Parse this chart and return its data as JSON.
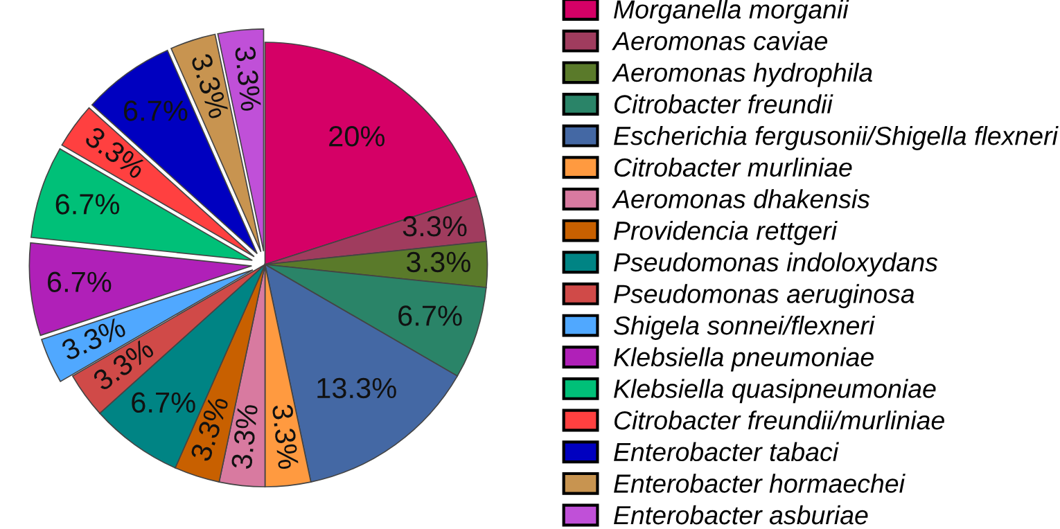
{
  "chart_data": {
    "type": "pie",
    "categories": [
      "Morganella morganii",
      "Aeromonas caviae",
      "Aeromonas hydrophila",
      "Citrobacter freundii",
      "Escherichia fergusonii/Shigella flexneri",
      "Citrobacter murliniae",
      "Aeromonas dhakensis",
      "Providencia rettgeri",
      "Pseudomonas indoloxydans",
      "Pseudomonas aeruginosa",
      "Shigela sonnei/flexneri",
      "Klebsiella pneumoniae",
      "Klebsiella quasipneumoniae",
      "Citrobacter freundii/murliniae",
      "Enterobacter tabaci",
      "Enterobacter hormaechei",
      "Enterobacter asburiae"
    ],
    "values": [
      20,
      3.3,
      3.3,
      6.7,
      13.3,
      3.3,
      3.3,
      3.3,
      6.7,
      3.3,
      3.3,
      6.7,
      6.7,
      3.3,
      6.7,
      3.3,
      3.3
    ],
    "colors": [
      "#d50066",
      "#a03c5e",
      "#5a7a2a",
      "#2a8468",
      "#4468a4",
      "#ff9a40",
      "#d87aa0",
      "#c86000",
      "#008484",
      "#d04a48",
      "#50a8ff",
      "#b020b8",
      "#00c078",
      "#ff4040",
      "#0000c0",
      "#c89450",
      "#c050d8"
    ],
    "value_labels": [
      "20%",
      "3.3%",
      "3.3%",
      "6.7%",
      "13.3%",
      "3.3%",
      "3.3%",
      "3.3%",
      "6.7%",
      "3.3%",
      "3.3%",
      "6.7%",
      "6.7%",
      "3.3%",
      "6.7%",
      "3.3%",
      "3.3%"
    ],
    "legend": "right"
  }
}
